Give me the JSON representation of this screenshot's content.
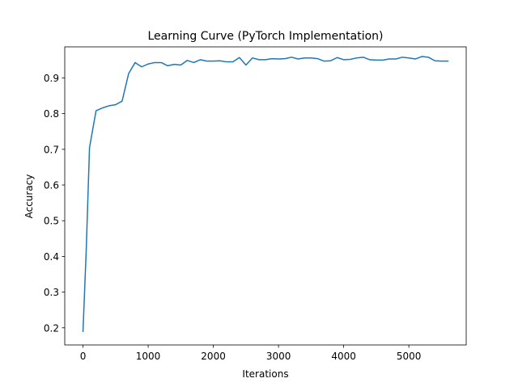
{
  "chart_data": {
    "type": "line",
    "title": "Learning Curve (PyTorch Implementation)",
    "xlabel": "Iterations",
    "ylabel": "Accuracy",
    "xlim": [
      -280,
      5880
    ],
    "ylim": [
      0.152,
      0.987
    ],
    "xticks": [
      0,
      1000,
      2000,
      3000,
      4000,
      5000
    ],
    "yticks": [
      0.2,
      0.3,
      0.4,
      0.5,
      0.6,
      0.7,
      0.8,
      0.9
    ],
    "grid": false,
    "legend": "none",
    "series": [
      {
        "color": "#1f77b4",
        "x": [
          0,
          50,
          100,
          200,
          300,
          400,
          500,
          600,
          700,
          800,
          900,
          1000,
          1100,
          1200,
          1300,
          1400,
          1500,
          1600,
          1700,
          1800,
          1900,
          2000,
          2100,
          2200,
          2300,
          2400,
          2500,
          2600,
          2700,
          2800,
          2900,
          3000,
          3100,
          3200,
          3300,
          3400,
          3500,
          3600,
          3700,
          3800,
          3900,
          4000,
          4100,
          4200,
          4300,
          4400,
          4500,
          4600,
          4700,
          4800,
          4900,
          5000,
          5100,
          5200,
          5300,
          5400,
          5500,
          5600
        ],
        "values": [
          0.19,
          0.42,
          0.705,
          0.808,
          0.816,
          0.822,
          0.825,
          0.835,
          0.912,
          0.943,
          0.931,
          0.939,
          0.943,
          0.943,
          0.934,
          0.938,
          0.936,
          0.949,
          0.943,
          0.951,
          0.947,
          0.947,
          0.948,
          0.945,
          0.945,
          0.957,
          0.936,
          0.956,
          0.951,
          0.951,
          0.954,
          0.953,
          0.954,
          0.958,
          0.953,
          0.956,
          0.956,
          0.954,
          0.947,
          0.948,
          0.957,
          0.951,
          0.952,
          0.956,
          0.958,
          0.951,
          0.95,
          0.95,
          0.953,
          0.953,
          0.958,
          0.956,
          0.953,
          0.96,
          0.958,
          0.948,
          0.947,
          0.947
        ]
      }
    ]
  }
}
